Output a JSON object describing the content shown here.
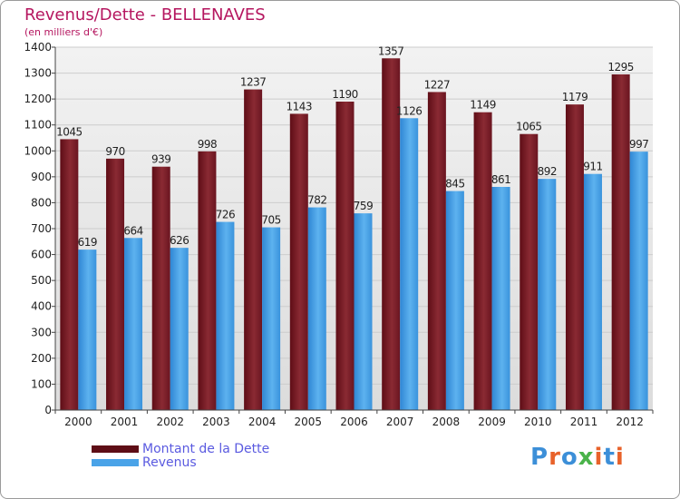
{
  "title": "Revenus/Dette - BELLENAVES",
  "subtitle": "(en milliers d'€)",
  "brand": {
    "name": "Proxiti",
    "letter_colors": [
      "#3c8fd8",
      "#e8622a",
      "#3c8fd8",
      "#4ab34a",
      "#e8622a",
      "#3c8fd8",
      "#e8622a"
    ]
  },
  "colors": {
    "dette": "#7a1a26",
    "revenus": "#4aa3e8",
    "axis": "#444444",
    "grid": "#cccccc",
    "background": "#e6e6e6",
    "title": "#b5165f",
    "legend_text": "#5a5ae0"
  },
  "chart_data": {
    "type": "bar",
    "categories": [
      "2000",
      "2001",
      "2002",
      "2003",
      "2004",
      "2005",
      "2006",
      "2007",
      "2008",
      "2009",
      "2010",
      "2011",
      "2012"
    ],
    "series": [
      {
        "name": "Montant de la Dette",
        "values": [
          1045,
          970,
          939,
          998,
          1237,
          1143,
          1190,
          1357,
          1227,
          1149,
          1065,
          1179,
          1295
        ]
      },
      {
        "name": "Revenus",
        "values": [
          619,
          664,
          626,
          726,
          705,
          782,
          759,
          1126,
          845,
          861,
          892,
          911,
          997
        ]
      }
    ],
    "ylim": [
      0,
      1400
    ],
    "yticks": [
      0,
      100,
      200,
      300,
      400,
      500,
      600,
      700,
      800,
      900,
      1000,
      1100,
      1200,
      1300,
      1400
    ],
    "grid": true,
    "legend_position": "bottom-left"
  }
}
